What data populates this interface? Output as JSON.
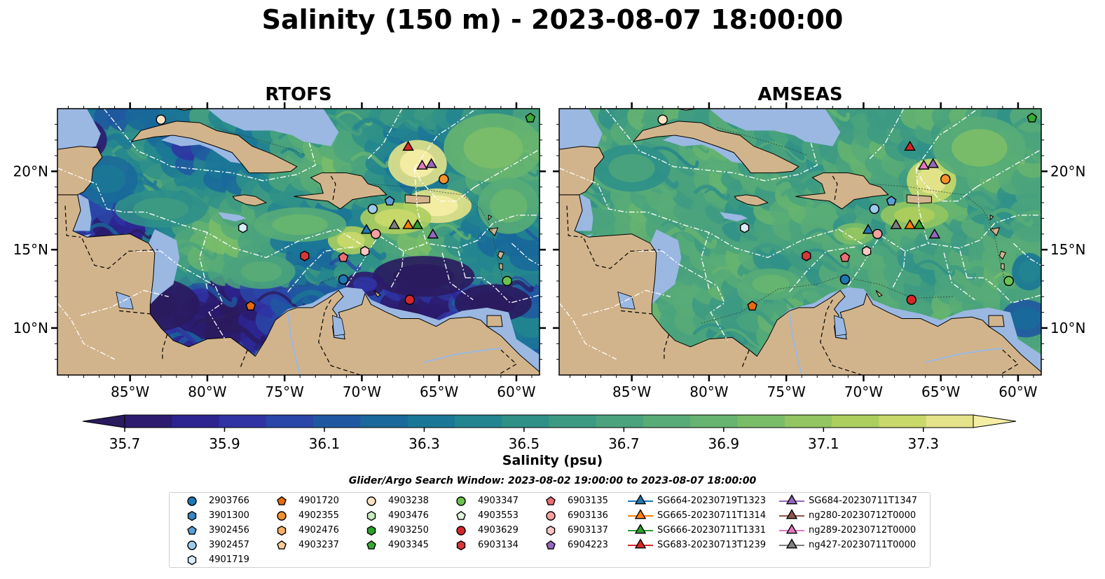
{
  "title": "Salinity (150 m) - 2023-08-07 18:00:00",
  "panels": [
    {
      "title": "RTOFS",
      "model": "rtofs"
    },
    {
      "title": "AMSEAS",
      "model": "amseas"
    }
  ],
  "axes": {
    "lon_ticks": [
      "85°W",
      "80°W",
      "75°W",
      "70°W",
      "65°W",
      "60°W"
    ],
    "lat_ticks": [
      "20°N",
      "15°N",
      "10°N"
    ],
    "lon_range": [
      -89.7,
      -58.5
    ],
    "lat_range": [
      7.0,
      24.0
    ]
  },
  "colorbar": {
    "label": "Salinity (psu)",
    "ticks": [
      "35.7",
      "35.9",
      "36.1",
      "36.3",
      "36.5",
      "36.7",
      "36.9",
      "37.1",
      "37.3"
    ],
    "range": [
      35.7,
      37.4
    ],
    "colors": [
      "#2c1b6e",
      "#2d2490",
      "#2f33a3",
      "#2a46a8",
      "#1f58a0",
      "#19699a",
      "#1b7796",
      "#23858f",
      "#2f9088",
      "#3d9a82",
      "#4aa37c",
      "#58ac77",
      "#66b470",
      "#7abd68",
      "#93c562",
      "#acce5e",
      "#c8d96a",
      "#e4e38a"
    ],
    "over_color": "#f4eda4",
    "under_color": "#2a1a5e"
  },
  "map_colors": {
    "land": "#d2b48c",
    "shelf": "#9ab8e2",
    "border": "#000000",
    "eez": "#ffffff"
  },
  "legend": {
    "title": "Glider/Argo Search Window: 2023-08-02 19:00:00 to 2023-08-07 18:00:00",
    "items": [
      {
        "label": "2903766",
        "marker": "circle",
        "color": "#1f77b4"
      },
      {
        "label": "3901300",
        "marker": "hexagon",
        "color": "#3a86c0"
      },
      {
        "label": "3902456",
        "marker": "pentagon",
        "color": "#5b9fd4"
      },
      {
        "label": "3902457",
        "marker": "circle",
        "color": "#9ccbec"
      },
      {
        "label": "4901719",
        "marker": "hexagon",
        "color": "#d9ecf8"
      },
      {
        "label": "4901720",
        "marker": "pentagon",
        "color": "#e86a0e"
      },
      {
        "label": "4902355",
        "marker": "circle",
        "color": "#f5912c"
      },
      {
        "label": "4902476",
        "marker": "hexagon",
        "color": "#f8b06a"
      },
      {
        "label": "4903237",
        "marker": "pentagon",
        "color": "#fbcc98"
      },
      {
        "label": "4903238",
        "marker": "circle",
        "color": "#fde3c4"
      },
      {
        "label": "4903476",
        "marker": "hexagon",
        "color": "#c8ecc0"
      },
      {
        "label": "4903250",
        "marker": "hexagon",
        "color": "#2ca02c"
      },
      {
        "label": "4903345",
        "marker": "pentagon",
        "color": "#3aa835"
      },
      {
        "label": "4903347",
        "marker": "circle",
        "color": "#6cc24f"
      },
      {
        "label": "4903553",
        "marker": "pentagon",
        "color": "#e3f5dc"
      },
      {
        "label": "4903629",
        "marker": "circle",
        "color": "#d62728"
      },
      {
        "label": "6903134",
        "marker": "hexagon",
        "color": "#d8363a"
      },
      {
        "label": "6903135",
        "marker": "pentagon",
        "color": "#ec6f76"
      },
      {
        "label": "6903136",
        "marker": "circle",
        "color": "#f6a19e"
      },
      {
        "label": "6903137",
        "marker": "hexagon",
        "color": "#fbc7c6"
      },
      {
        "label": "6904223",
        "marker": "pentagon",
        "color": "#9467bd"
      },
      {
        "label": "SG664-20230719T1323",
        "marker": "triangle",
        "color": "#1f77b4"
      },
      {
        "label": "SG665-20230711T1314",
        "marker": "triangle",
        "color": "#ff7f0e"
      },
      {
        "label": "SG666-20230711T1331",
        "marker": "triangle",
        "color": "#2ca02c"
      },
      {
        "label": "SG683-20230713T1239",
        "marker": "triangle",
        "color": "#d62728"
      },
      {
        "label": "SG684-20230711T1347",
        "marker": "triangle",
        "color": "#9467bd"
      },
      {
        "label": "ng280-20230712T0000",
        "marker": "triangle",
        "color": "#8c564b"
      },
      {
        "label": "ng289-20230712T0000",
        "marker": "triangle",
        "color": "#e377c2"
      },
      {
        "label": "ng427-20230711T0000",
        "marker": "triangle",
        "color": "#7f7f7f"
      }
    ]
  },
  "observations": [
    {
      "id": "4903238",
      "lon": -83.0,
      "lat": 23.3
    },
    {
      "id": "4903345",
      "lon": -59.1,
      "lat": 23.4
    },
    {
      "id": "SG683-20230713T1239",
      "lon": -67.0,
      "lat": 21.6
    },
    {
      "id": "ng289-20230712T0000",
      "lon": -66.1,
      "lat": 20.4
    },
    {
      "id": "SG684-20230711T1347",
      "lon": -65.5,
      "lat": 20.5
    },
    {
      "id": "4902355",
      "lon": -64.7,
      "lat": 19.5
    },
    {
      "id": "3902457",
      "lon": -69.3,
      "lat": 17.6
    },
    {
      "id": "3902456",
      "lon": -68.2,
      "lat": 18.1
    },
    {
      "id": "4901719",
      "lon": -77.7,
      "lat": 16.4
    },
    {
      "id": "SG664-20230719T1323",
      "lon": -69.7,
      "lat": 16.3
    },
    {
      "id": "6903136",
      "lon": -69.1,
      "lat": 16.0
    },
    {
      "id": "ng427-20230711T0000",
      "lon": -67.9,
      "lat": 16.6
    },
    {
      "id": "SG665-20230711T1314",
      "lon": -67.0,
      "lat": 16.6
    },
    {
      "id": "SG666-20230711T1331",
      "lon": -66.4,
      "lat": 16.6
    },
    {
      "id": "SG684-20230711T1347",
      "lon": -65.4,
      "lat": 16.0
    },
    {
      "id": "6903137",
      "lon": -69.8,
      "lat": 14.9
    },
    {
      "id": "6903134",
      "lon": -73.7,
      "lat": 14.6
    },
    {
      "id": "6903135",
      "lon": -71.2,
      "lat": 14.5
    },
    {
      "id": "2903766",
      "lon": -71.2,
      "lat": 13.1
    },
    {
      "id": "4903347",
      "lon": -60.6,
      "lat": 13.0
    },
    {
      "id": "4903629",
      "lon": -66.9,
      "lat": 11.8
    },
    {
      "id": "4901720",
      "lon": -77.2,
      "lat": 11.4
    }
  ]
}
